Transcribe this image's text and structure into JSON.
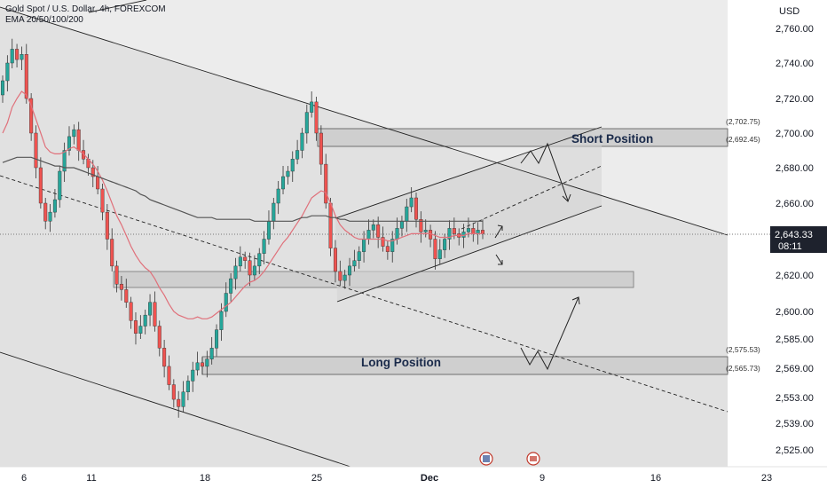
{
  "header": {
    "symbol_line": "Gold Spot / U.S. Dollar, 4h, FOREXCOM",
    "indicator_line": "EMA 20/50/100/200"
  },
  "currency": "USD",
  "current_price": {
    "value": "2,643.33",
    "countdown": "08:11"
  },
  "annotations": {
    "short_label": "Short Position",
    "long_label": "Long Position"
  },
  "price_tags": {
    "short_top": "(2,702.75)",
    "short_bottom": "(2,692.45)",
    "long_top": "(2,575.53)",
    "long_bottom": "(2,565.73)"
  },
  "colors": {
    "bull": "#26a69a",
    "bear": "#ef5350",
    "ema_fast": "#e0707a",
    "ema_slow": "#555555",
    "zone_fill": "#d5d5d5"
  },
  "chart_data": {
    "type": "candlestick",
    "y_ticks": [
      "2,760.00",
      "2,740.00",
      "2,720.00",
      "2,700.00",
      "2,680.00",
      "2,660.00",
      "2,620.00",
      "2,600.00",
      "2,585.00",
      "2,569.00",
      "2,553.00",
      "2,539.00",
      "2,525.00"
    ],
    "x_ticks": [
      "6",
      "11",
      "18",
      "25",
      "Dec",
      "9",
      "16",
      "23"
    ],
    "ylim": [
      2518,
      2772
    ],
    "zones": [
      {
        "name": "short",
        "from": 2692.45,
        "to": 2702.75
      },
      {
        "name": "mid",
        "from": 2614,
        "to": 2623
      },
      {
        "name": "long",
        "from": 2565.73,
        "to": 2575.53
      }
    ],
    "closes": [
      2730,
      2740,
      2748,
      2742,
      2745,
      2720,
      2700,
      2680,
      2660,
      2650,
      2655,
      2662,
      2678,
      2690,
      2698,
      2702,
      2690,
      2685,
      2680,
      2675,
      2668,
      2655,
      2640,
      2625,
      2615,
      2612,
      2605,
      2595,
      2588,
      2592,
      2598,
      2605,
      2592,
      2580,
      2570,
      2560,
      2552,
      2548,
      2556,
      2562,
      2568,
      2572,
      2570,
      2574,
      2580,
      2590,
      2600,
      2610,
      2618,
      2625,
      2630,
      2628,
      2620,
      2625,
      2632,
      2640,
      2650,
      2660,
      2668,
      2675,
      2678,
      2685,
      2690,
      2700,
      2712,
      2718,
      2700,
      2682,
      2660,
      2635,
      2622,
      2617,
      2620,
      2625,
      2628,
      2633,
      2640,
      2645,
      2648,
      2641,
      2636,
      2633,
      2640,
      2646,
      2650,
      2658,
      2663,
      2651,
      2644,
      2645,
      2640,
      2629,
      2634,
      2640,
      2646,
      2643,
      2641,
      2644,
      2646,
      2643,
      2645,
      2643
    ],
    "ema_fast": [
      2700,
      2706,
      2715,
      2720,
      2724,
      2722,
      2716,
      2708,
      2700,
      2692,
      2689,
      2688,
      2688,
      2689,
      2691,
      2692,
      2690,
      2688,
      2685,
      2682,
      2678,
      2673,
      2667,
      2660,
      2653,
      2648,
      2642,
      2636,
      2631,
      2627,
      2624,
      2622,
      2618,
      2613,
      2609,
      2604,
      2600,
      2598,
      2597,
      2596,
      2596,
      2597,
      2596,
      2596,
      2597,
      2599,
      2601,
      2603,
      2605,
      2608,
      2611,
      2614,
      2616,
      2617,
      2619,
      2622,
      2626,
      2630,
      2634,
      2638,
      2641,
      2645,
      2649,
      2653,
      2658,
      2663,
      2665,
      2667,
      2666,
      2660,
      2653,
      2648,
      2645,
      2643,
      2641,
      2640,
      2640,
      2640,
      2640,
      2640,
      2640,
      2639,
      2639,
      2640,
      2641,
      2642,
      2643,
      2643,
      2643,
      2643,
      2643,
      2642,
      2641,
      2641,
      2641,
      2642,
      2642,
      2642,
      2643,
      2643,
      2643,
      2643
    ],
    "ema_slow": [
      2683,
      2684,
      2685,
      2686,
      2686,
      2686,
      2686,
      2685,
      2684,
      2683,
      2682,
      2681,
      2681,
      2680,
      2680,
      2680,
      2679,
      2678,
      2677,
      2676,
      2675,
      2674,
      2673,
      2672,
      2671,
      2670,
      2669,
      2668,
      2667,
      2665,
      2664,
      2662,
      2661,
      2660,
      2659,
      2658,
      2657,
      2656,
      2655,
      2654,
      2653,
      2652,
      2652,
      2652,
      2652,
      2651,
      2651,
      2651,
      2651,
      2651,
      2651,
      2651,
      2651,
      2650,
      2650,
      2650,
      2650,
      2650,
      2650,
      2650,
      2650,
      2650,
      2651,
      2652,
      2652,
      2653,
      2653,
      2653,
      2653,
      2652,
      2652,
      2651,
      2651,
      2650,
      2650,
      2650,
      2650,
      2650,
      2650,
      2650,
      2650,
      2650,
      2650,
      2650,
      2650,
      2650,
      2650,
      2650,
      2650,
      2650,
      2650,
      2650,
      2650,
      2650,
      2650,
      2650,
      2650,
      2650,
      2650,
      2650,
      2650,
      2650
    ]
  }
}
